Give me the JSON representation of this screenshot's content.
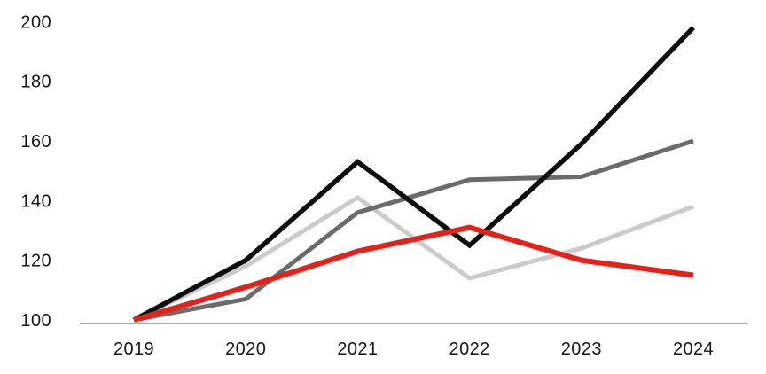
{
  "chart_data": {
    "type": "line",
    "title": "",
    "xlabel": "",
    "ylabel": "",
    "x_labels": [
      "2019",
      "2020",
      "2021",
      "2022",
      "2023",
      "2024"
    ],
    "series": [
      {
        "name": "light-gray-series",
        "color": "#cbcbcb",
        "stroke_width": 5,
        "values": [
          100,
          118,
          141,
          114,
          124,
          138
        ]
      },
      {
        "name": "dark-gray-series",
        "color": "#6b6b6b",
        "stroke_width": 5,
        "values": [
          100,
          107,
          136,
          147,
          148,
          160
        ]
      },
      {
        "name": "black-series",
        "color": "#0d0d0d",
        "stroke_width": 5.5,
        "values": [
          100,
          120,
          153,
          125,
          159,
          198
        ]
      },
      {
        "name": "red-series",
        "color": "#e3231a",
        "stroke_width": 6,
        "values": [
          100,
          111,
          123,
          131,
          120,
          115
        ]
      }
    ],
    "series_z_order": "listed bottom to top (red drawn topmost)",
    "y_ticks": [
      100,
      120,
      140,
      160,
      180,
      200
    ],
    "ylim": [
      100,
      200
    ],
    "grid": false,
    "legend": "none",
    "axis_baseline_color": "#a6a6a6",
    "tick_text_color": "#161616",
    "background_color": "#ffffff"
  }
}
